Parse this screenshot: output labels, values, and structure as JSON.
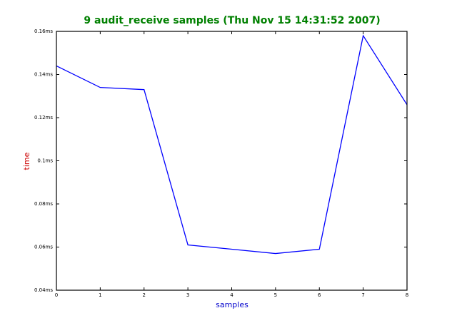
{
  "chart_data": {
    "type": "line",
    "title": "9 audit_receive samples (Thu Nov 15 14:31:52 2007)",
    "x_label": "samples",
    "y_label": "time",
    "x": [
      0,
      1,
      2,
      3,
      4,
      5,
      6,
      7,
      8
    ],
    "values": [
      0.144,
      0.134,
      0.133,
      0.061,
      0.059,
      0.057,
      0.059,
      0.158,
      0.126
    ],
    "color": "#0000ff",
    "xlim": [
      0,
      8
    ],
    "xticks": [
      0,
      1,
      2,
      3,
      4,
      5,
      6,
      7,
      8
    ],
    "ylim": [
      0.04,
      0.16
    ],
    "yticks": [
      {
        "value": 0.04,
        "label": "0.04ms"
      },
      {
        "value": 0.06,
        "label": "0.06ms"
      },
      {
        "value": 0.08,
        "label": "0.08ms"
      },
      {
        "value": 0.1,
        "label": "0.1ms"
      },
      {
        "value": 0.12,
        "label": "0.12ms"
      },
      {
        "value": 0.14,
        "label": "0.14ms"
      },
      {
        "value": 0.16,
        "label": "0.16ms"
      }
    ],
    "grid": false
  }
}
